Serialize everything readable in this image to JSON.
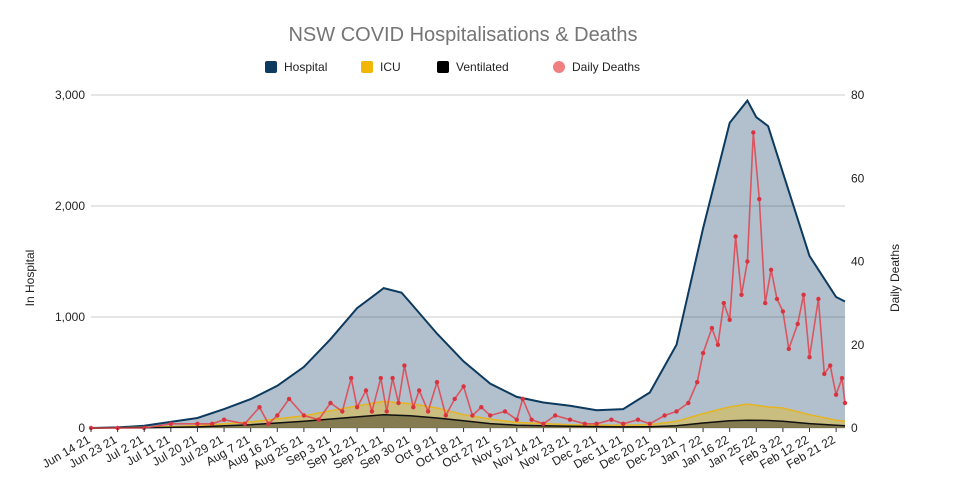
{
  "chart_data": {
    "type": "area",
    "title": "NSW COVID Hospitalisations & Deaths",
    "ylabel_left": "In Hospital",
    "ylabel_right": "Daily Deaths",
    "ylim_left": [
      0,
      3000
    ],
    "ylim_right": [
      0,
      80
    ],
    "yticks_left": [
      "0",
      "1,000",
      "2,000",
      "3,000"
    ],
    "yticks_right": [
      "0",
      "20",
      "40",
      "60",
      "80"
    ],
    "grid": true,
    "legend_position": "top-center",
    "x_start": "2021-06-14",
    "x_end": "2022-02-24",
    "x_ticks": [
      "Jun 14 21",
      "Jun 23 21",
      "Jul 2 21",
      "Jul 11 21",
      "Jul 20 21",
      "Jul 29 21",
      "Aug 7 21",
      "Aug 16 21",
      "Aug 25 21",
      "Sep 3 21",
      "Sep 12 21",
      "Sep 21 21",
      "Sep 30 21",
      "Oct 9 21",
      "Oct 18 21",
      "Oct 27 21",
      "Nov 5 21",
      "Nov 14 21",
      "Nov 23 21",
      "Dec 2 21",
      "Dec 11 21",
      "Dec 20 21",
      "Dec 29 21",
      "Jan 7 22",
      "Jan 16 22",
      "Jan 25 22",
      "Feb 3 22",
      "Feb 12 22",
      "Feb 21 22"
    ],
    "legend": [
      {
        "name": "Hospital",
        "color": "#0d3a5f",
        "shape": "square"
      },
      {
        "name": "ICU",
        "color": "#f2b705",
        "shape": "square"
      },
      {
        "name": "Ventilated",
        "color": "#000000",
        "shape": "square"
      },
      {
        "name": "Daily Deaths",
        "color": "#f08080",
        "shape": "circle"
      }
    ],
    "series": [
      {
        "name": "Hospital",
        "axis": "left",
        "points": [
          [
            "2021-06-14",
            0
          ],
          [
            "2021-06-23",
            5
          ],
          [
            "2021-07-02",
            20
          ],
          [
            "2021-07-11",
            55
          ],
          [
            "2021-07-20",
            90
          ],
          [
            "2021-07-29",
            170
          ],
          [
            "2021-08-07",
            260
          ],
          [
            "2021-08-16",
            380
          ],
          [
            "2021-08-25",
            550
          ],
          [
            "2021-09-03",
            800
          ],
          [
            "2021-09-12",
            1080
          ],
          [
            "2021-09-18",
            1200
          ],
          [
            "2021-09-21",
            1260
          ],
          [
            "2021-09-27",
            1220
          ],
          [
            "2021-09-30",
            1130
          ],
          [
            "2021-10-09",
            850
          ],
          [
            "2021-10-18",
            600
          ],
          [
            "2021-10-27",
            400
          ],
          [
            "2021-11-05",
            280
          ],
          [
            "2021-11-14",
            230
          ],
          [
            "2021-11-23",
            200
          ],
          [
            "2021-12-02",
            160
          ],
          [
            "2021-12-11",
            170
          ],
          [
            "2021-12-20",
            320
          ],
          [
            "2021-12-29",
            750
          ],
          [
            "2022-01-07",
            1800
          ],
          [
            "2022-01-16",
            2750
          ],
          [
            "2022-01-22",
            2950
          ],
          [
            "2022-01-25",
            2800
          ],
          [
            "2022-01-29",
            2720
          ],
          [
            "2022-02-03",
            2300
          ],
          [
            "2022-02-12",
            1550
          ],
          [
            "2022-02-21",
            1180
          ],
          [
            "2022-02-24",
            1140
          ]
        ]
      },
      {
        "name": "ICU",
        "axis": "left",
        "points": [
          [
            "2021-06-14",
            0
          ],
          [
            "2021-07-02",
            5
          ],
          [
            "2021-07-20",
            20
          ],
          [
            "2021-08-07",
            55
          ],
          [
            "2021-08-25",
            110
          ],
          [
            "2021-09-12",
            200
          ],
          [
            "2021-09-21",
            240
          ],
          [
            "2021-09-30",
            220
          ],
          [
            "2021-10-09",
            180
          ],
          [
            "2021-10-18",
            120
          ],
          [
            "2021-10-27",
            80
          ],
          [
            "2021-11-05",
            50
          ],
          [
            "2021-11-23",
            30
          ],
          [
            "2021-12-11",
            25
          ],
          [
            "2021-12-20",
            30
          ],
          [
            "2021-12-29",
            60
          ],
          [
            "2022-01-07",
            130
          ],
          [
            "2022-01-16",
            190
          ],
          [
            "2022-01-22",
            215
          ],
          [
            "2022-01-29",
            190
          ],
          [
            "2022-02-03",
            180
          ],
          [
            "2022-02-12",
            120
          ],
          [
            "2022-02-21",
            70
          ],
          [
            "2022-02-24",
            60
          ]
        ]
      },
      {
        "name": "Ventilated",
        "axis": "left",
        "points": [
          [
            "2021-06-14",
            0
          ],
          [
            "2021-07-02",
            3
          ],
          [
            "2021-07-20",
            10
          ],
          [
            "2021-08-07",
            30
          ],
          [
            "2021-08-25",
            60
          ],
          [
            "2021-09-12",
            100
          ],
          [
            "2021-09-21",
            120
          ],
          [
            "2021-09-30",
            110
          ],
          [
            "2021-10-09",
            90
          ],
          [
            "2021-10-18",
            65
          ],
          [
            "2021-10-27",
            40
          ],
          [
            "2021-11-05",
            25
          ],
          [
            "2021-11-23",
            15
          ],
          [
            "2021-12-11",
            10
          ],
          [
            "2021-12-20",
            12
          ],
          [
            "2021-12-29",
            20
          ],
          [
            "2022-01-07",
            45
          ],
          [
            "2022-01-16",
            65
          ],
          [
            "2022-01-22",
            70
          ],
          [
            "2022-01-29",
            68
          ],
          [
            "2022-02-03",
            60
          ],
          [
            "2022-02-12",
            40
          ],
          [
            "2022-02-21",
            25
          ],
          [
            "2022-02-24",
            20
          ]
        ]
      },
      {
        "name": "Daily Deaths",
        "axis": "right",
        "points": [
          [
            "2021-06-14",
            0
          ],
          [
            "2021-06-23",
            0
          ],
          [
            "2021-07-02",
            0
          ],
          [
            "2021-07-11",
            1
          ],
          [
            "2021-07-20",
            1
          ],
          [
            "2021-07-25",
            1
          ],
          [
            "2021-07-29",
            2
          ],
          [
            "2021-08-05",
            1
          ],
          [
            "2021-08-10",
            5
          ],
          [
            "2021-08-13",
            1
          ],
          [
            "2021-08-16",
            3
          ],
          [
            "2021-08-20",
            7
          ],
          [
            "2021-08-25",
            3
          ],
          [
            "2021-08-30",
            2
          ],
          [
            "2021-09-03",
            6
          ],
          [
            "2021-09-07",
            4
          ],
          [
            "2021-09-10",
            12
          ],
          [
            "2021-09-12",
            5
          ],
          [
            "2021-09-15",
            9
          ],
          [
            "2021-09-17",
            4
          ],
          [
            "2021-09-20",
            12
          ],
          [
            "2021-09-22",
            4
          ],
          [
            "2021-09-24",
            12
          ],
          [
            "2021-09-26",
            6
          ],
          [
            "2021-09-28",
            15
          ],
          [
            "2021-10-01",
            5
          ],
          [
            "2021-10-03",
            9
          ],
          [
            "2021-10-06",
            4
          ],
          [
            "2021-10-09",
            11
          ],
          [
            "2021-10-12",
            3
          ],
          [
            "2021-10-15",
            7
          ],
          [
            "2021-10-18",
            10
          ],
          [
            "2021-10-21",
            3
          ],
          [
            "2021-10-24",
            5
          ],
          [
            "2021-10-27",
            3
          ],
          [
            "2021-11-01",
            4
          ],
          [
            "2021-11-05",
            2
          ],
          [
            "2021-11-07",
            7
          ],
          [
            "2021-11-10",
            2
          ],
          [
            "2021-11-14",
            1
          ],
          [
            "2021-11-18",
            3
          ],
          [
            "2021-11-23",
            2
          ],
          [
            "2021-11-28",
            1
          ],
          [
            "2021-12-02",
            1
          ],
          [
            "2021-12-07",
            2
          ],
          [
            "2021-12-11",
            1
          ],
          [
            "2021-12-16",
            2
          ],
          [
            "2021-12-20",
            1
          ],
          [
            "2021-12-25",
            3
          ],
          [
            "2021-12-29",
            4
          ],
          [
            "2022-01-02",
            6
          ],
          [
            "2022-01-05",
            11
          ],
          [
            "2022-01-07",
            18
          ],
          [
            "2022-01-10",
            24
          ],
          [
            "2022-01-12",
            20
          ],
          [
            "2022-01-14",
            30
          ],
          [
            "2022-01-16",
            26
          ],
          [
            "2022-01-18",
            46
          ],
          [
            "2022-01-20",
            32
          ],
          [
            "2022-01-22",
            40
          ],
          [
            "2022-01-24",
            71
          ],
          [
            "2022-01-26",
            55
          ],
          [
            "2022-01-28",
            30
          ],
          [
            "2022-01-30",
            38
          ],
          [
            "2022-02-01",
            31
          ],
          [
            "2022-02-03",
            28
          ],
          [
            "2022-02-05",
            19
          ],
          [
            "2022-02-08",
            25
          ],
          [
            "2022-02-10",
            32
          ],
          [
            "2022-02-12",
            17
          ],
          [
            "2022-02-15",
            31
          ],
          [
            "2022-02-17",
            13
          ],
          [
            "2022-02-19",
            15
          ],
          [
            "2022-02-21",
            8
          ],
          [
            "2022-02-23",
            12
          ],
          [
            "2022-02-24",
            6
          ]
        ]
      }
    ]
  }
}
